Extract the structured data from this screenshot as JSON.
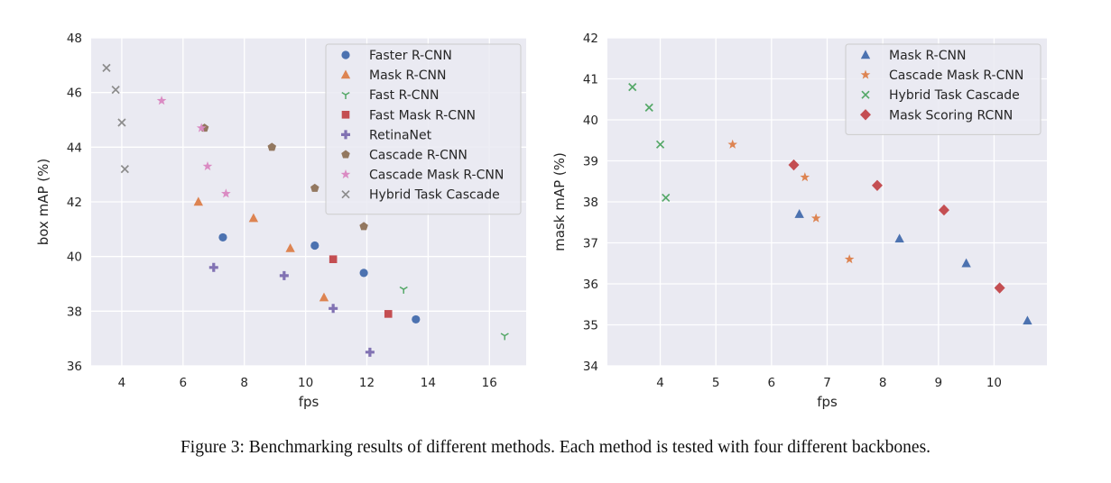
{
  "caption": "Figure 3: Benchmarking results of different methods. Each method is tested with four different backbones.",
  "chart_data": [
    {
      "type": "scatter",
      "xlabel": "fps",
      "ylabel": "box mAP (%)",
      "xlim": [
        3,
        17.2
      ],
      "ylim": [
        36,
        48
      ],
      "xticks": [
        4,
        6,
        8,
        10,
        12,
        14,
        16
      ],
      "yticks": [
        36,
        38,
        40,
        42,
        44,
        46,
        48
      ],
      "grid": true,
      "legend_position": "top-right",
      "series": [
        {
          "name": "Faster R-CNN",
          "marker": "circle",
          "color": "#4c72b0",
          "points": [
            [
              7.3,
              40.7
            ],
            [
              10.3,
              40.4
            ],
            [
              11.9,
              39.4
            ],
            [
              13.6,
              37.7
            ]
          ]
        },
        {
          "name": "Mask R-CNN",
          "marker": "triangle",
          "color": "#dd8452",
          "points": [
            [
              6.5,
              42.0
            ],
            [
              8.3,
              41.4
            ],
            [
              9.5,
              40.3
            ],
            [
              10.6,
              38.5
            ]
          ]
        },
        {
          "name": "Fast R-CNN",
          "marker": "tri_down",
          "color": "#55a868",
          "points": [
            [
              13.2,
              38.8
            ],
            [
              16.5,
              37.1
            ]
          ]
        },
        {
          "name": "Fast Mask R-CNN",
          "marker": "square",
          "color": "#c44e52",
          "points": [
            [
              10.9,
              39.9
            ],
            [
              12.7,
              37.9
            ]
          ]
        },
        {
          "name": "RetinaNet",
          "marker": "plus",
          "color": "#8172b3",
          "points": [
            [
              7.0,
              39.6
            ],
            [
              9.3,
              39.3
            ],
            [
              10.9,
              38.1
            ],
            [
              12.1,
              36.5
            ]
          ]
        },
        {
          "name": "Cascade R-CNN",
          "marker": "pentagon",
          "color": "#937860",
          "points": [
            [
              6.7,
              44.7
            ],
            [
              8.9,
              44.0
            ],
            [
              10.3,
              42.5
            ],
            [
              11.9,
              41.1
            ]
          ]
        },
        {
          "name": "Cascade Mask R-CNN",
          "marker": "star",
          "color": "#da8bc3",
          "points": [
            [
              5.3,
              45.7
            ],
            [
              6.6,
              44.7
            ],
            [
              6.8,
              43.3
            ],
            [
              7.4,
              42.3
            ]
          ]
        },
        {
          "name": "Hybrid Task Cascade",
          "marker": "x",
          "color": "#8c8c8c",
          "points": [
            [
              3.5,
              46.9
            ],
            [
              3.8,
              46.1
            ],
            [
              4.0,
              44.9
            ],
            [
              4.1,
              43.2
            ]
          ]
        }
      ]
    },
    {
      "type": "scatter",
      "xlabel": "fps",
      "ylabel": "mask mAP (%)",
      "xlim": [
        3.05,
        10.95
      ],
      "ylim": [
        34,
        42
      ],
      "xticks": [
        4,
        5,
        6,
        7,
        8,
        9,
        10
      ],
      "yticks": [
        34,
        35,
        36,
        37,
        38,
        39,
        40,
        41,
        42
      ],
      "grid": true,
      "legend_position": "top-right",
      "series": [
        {
          "name": "Mask R-CNN",
          "marker": "triangle",
          "color": "#4c72b0",
          "points": [
            [
              6.5,
              37.7
            ],
            [
              8.3,
              37.1
            ],
            [
              9.5,
              36.5
            ],
            [
              10.6,
              35.1
            ]
          ]
        },
        {
          "name": "Cascade Mask R-CNN",
          "marker": "star",
          "color": "#dd8452",
          "points": [
            [
              5.3,
              39.4
            ],
            [
              6.6,
              38.6
            ],
            [
              6.8,
              37.6
            ],
            [
              7.4,
              36.6
            ]
          ]
        },
        {
          "name": "Hybrid Task Cascade",
          "marker": "x",
          "color": "#55a868",
          "points": [
            [
              3.5,
              40.8
            ],
            [
              3.8,
              40.3
            ],
            [
              4.0,
              39.4
            ],
            [
              4.1,
              38.1
            ]
          ]
        },
        {
          "name": "Mask Scoring RCNN",
          "marker": "diamond",
          "color": "#c44e52",
          "points": [
            [
              6.4,
              38.9
            ],
            [
              7.9,
              38.4
            ],
            [
              9.1,
              37.8
            ],
            [
              10.1,
              35.9
            ]
          ]
        }
      ]
    }
  ]
}
